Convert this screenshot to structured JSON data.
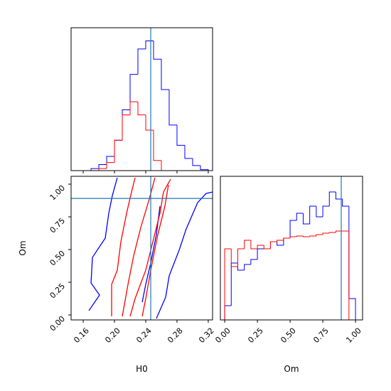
{
  "chart_data": [
    {
      "type": "histogram",
      "bins": [
        0.15,
        0.16,
        0.17,
        0.18,
        0.19,
        0.2,
        0.21,
        0.22,
        0.23,
        0.24,
        0.25,
        0.26,
        0.27,
        0.28,
        0.29,
        0.3,
        0.31,
        0.32
      ],
      "series": [
        {
          "color": "#0000ff",
          "values": [
            0,
            0,
            2,
            6,
            14,
            30,
            60,
            95,
            120,
            128,
            110,
            80,
            45,
            25,
            12,
            5,
            1
          ]
        },
        {
          "color": "#ff0000",
          "values": [
            0,
            0,
            0,
            2,
            8,
            30,
            55,
            68,
            55,
            40,
            10,
            0,
            0,
            0,
            0,
            0,
            0
          ]
        }
      ],
      "xlim": [
        0.1445,
        0.3255
      ],
      "ylim": [
        0,
        141
      ],
      "xticks": [
        0.16,
        0.2,
        0.24,
        0.28,
        0.32
      ],
      "vline": 0.2464,
      "line_color": "#1f77b4"
    },
    {
      "type": "contour",
      "xlabel": "H0",
      "ylabel": "Om",
      "series": [
        {
          "color": "#0000ff",
          "x": [
            0.1673,
            0.1809,
            0.17,
            0.1718,
            0.1882,
            0.1927,
            0.1973,
            0.2036
          ],
          "y": [
            0.033,
            0.152,
            0.245,
            0.44,
            0.587,
            0.777,
            0.913,
            1.049
          ]
        },
        {
          "color": "#0000ff",
          "x": [
            0.2536,
            0.2655,
            0.27,
            0.2827,
            0.2918,
            0.3064,
            0.3173,
            0.3255
          ],
          "y": [
            -0.027,
            0.136,
            0.299,
            0.495,
            0.658,
            0.859,
            0.929,
            0.94
          ]
        },
        {
          "color": "#0000ff",
          "x": [
            0.2582,
            0.2536,
            0.2464,
            0.24,
            0.2355
          ],
          "y": [
            0.832,
            0.614,
            0.397,
            0.234,
            0.098
          ]
        },
        {
          "color": "#ff0000",
          "x": [
            0.1964,
            0.1964,
            0.2036,
            0.2082,
            0.2155,
            0.2218,
            0.2264
          ],
          "y": [
            -0.011,
            0.234,
            0.342,
            0.56,
            0.777,
            0.94,
            1.049
          ]
        },
        {
          "color": "#ff0000",
          "x": [
            0.22,
            0.2264,
            0.24,
            0.2491,
            0.2582,
            0.2627,
            0.2718
          ],
          "y": [
            -0.011,
            0.125,
            0.342,
            0.56,
            0.777,
            0.94,
            1.038
          ]
        },
        {
          "color": "#ff0000",
          "x": [
            0.21,
            0.2173,
            0.2245,
            0.2336,
            0.2445,
            0.2518
          ],
          "y": [
            -0.011,
            0.234,
            0.451,
            0.668,
            0.886,
            1.049
          ]
        },
        {
          "color": "#ff0000",
          "x": [
            0.2355,
            0.24,
            0.2464,
            0.2555,
            0.2645,
            0.2691
          ],
          "y": [
            -0.011,
            0.125,
            0.342,
            0.614,
            0.832,
            0.995
          ]
        }
      ],
      "xlim": [
        0.1445,
        0.3255
      ],
      "ylim": [
        -0.038,
        1.06
      ],
      "xticks": [
        0.16,
        {
          "value": 0.2,
          "label": "0.20"
        },
        0.24,
        0.28,
        0.32
      ],
      "yticks": [
        {
          "value": 0,
          "label": "0.00"
        },
        0.25,
        {
          "value": 0.5,
          "label": "0.50"
        },
        0.75,
        {
          "value": 1,
          "label": "1.00"
        }
      ],
      "vline": 0.2464,
      "hline": 0.891,
      "line_color": "#1f77b4"
    },
    {
      "type": "histogram",
      "xlabel": "Om",
      "bins": [
        0,
        0.05,
        0.1,
        0.15,
        0.2,
        0.25,
        0.3,
        0.35,
        0.4,
        0.45,
        0.5,
        0.55,
        0.6,
        0.65,
        0.7,
        0.75,
        0.8,
        0.85,
        0.9,
        0.95,
        1
      ],
      "series": [
        {
          "color": "#0000ff",
          "values": [
            20,
            80,
            70,
            78,
            85,
            100,
            100,
            110,
            105,
            115,
            140,
            150,
            135,
            160,
            145,
            160,
            180,
            170,
            160,
            30
          ]
        },
        {
          "color": "#ff0000",
          "values": [
            100,
            75,
            100,
            112,
            100,
            105,
            100,
            110,
            112,
            115,
            117,
            118,
            117,
            118,
            120,
            122,
            123,
            125,
            125,
            0
          ]
        }
      ],
      "xlim": [
        -0.033,
        1.054
      ],
      "ylim": [
        0,
        202
      ],
      "xticks": [
        {
          "value": 0,
          "label": "0.00"
        },
        0.25,
        {
          "value": 0.5,
          "label": "0.50"
        },
        0.75,
        {
          "value": 1,
          "label": "1.00"
        }
      ],
      "vline": 0.891,
      "line_color": "#1f77b4"
    }
  ]
}
